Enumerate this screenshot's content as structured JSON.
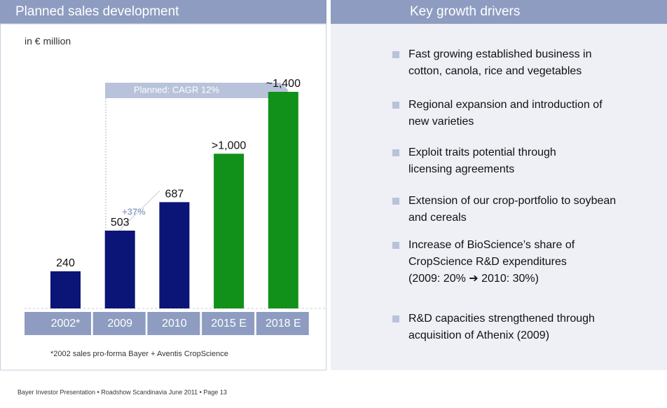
{
  "left_header": "Planned sales development",
  "right_header": "Key growth drivers",
  "chart_data": {
    "type": "bar",
    "subtitle": "in € million",
    "categories": [
      "2002*",
      "2009",
      "2010",
      "2015 E",
      "2018 E"
    ],
    "values": [
      240,
      503,
      687,
      1000,
      1400
    ],
    "value_labels": [
      "240",
      "503",
      "687",
      ">1,000",
      "~1,400"
    ],
    "colors": [
      "#0b1477",
      "#0b1477",
      "#0b1477",
      "#11901a",
      "#11901a"
    ],
    "ylim": [
      0,
      1400
    ],
    "annotations": [
      "Planned: CAGR 12%",
      "+37%"
    ],
    "footnote": "*2002 sales pro-forma Bayer + Aventis CropScience"
  },
  "bullets": [
    [
      "Fast growing established business in",
      "cotton, canola, rice and vegetables"
    ],
    [
      "Regional expansion and introduction of",
      "new varieties"
    ],
    [
      "Exploit traits potential through",
      "licensing agreements"
    ],
    [
      "Extension of our crop-portfolio to soybean",
      "and cereals"
    ],
    [
      "Increase of BioScience’s share of",
      "CropScience R&D expenditures",
      "(2009: 20% ➔ 2010: 30%)"
    ],
    [
      "R&D capacities strengthened through",
      "acquisition of Athenix (2009)"
    ]
  ],
  "footer": "Bayer Investor Presentation • Roadshow Scandinavia June 2011 • Page 13"
}
